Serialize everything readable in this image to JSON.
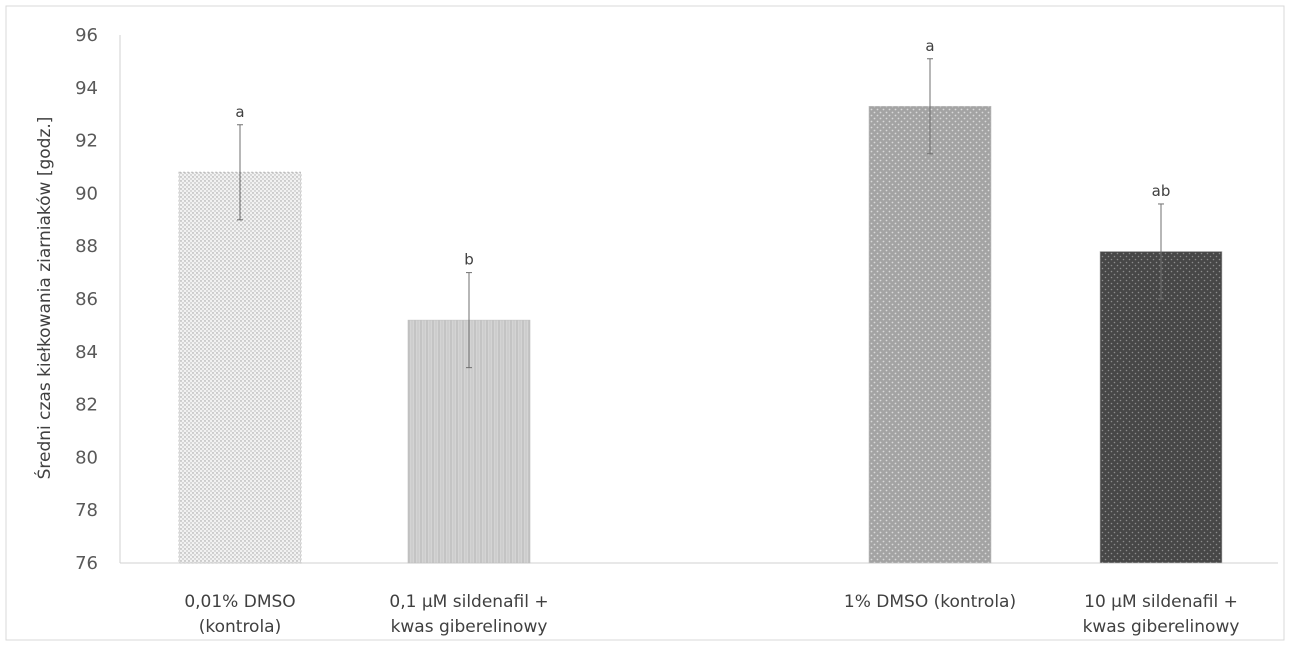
{
  "chart_data": {
    "type": "bar",
    "ylabel": "Średni czas kiełkowania ziarniaków [godz.]",
    "ylim": [
      76,
      96
    ],
    "yticks": [
      "76",
      "78",
      "80",
      "82",
      "84",
      "86",
      "88",
      "90",
      "92",
      "94",
      "96"
    ],
    "grid": false,
    "bars": [
      {
        "category": [
          "0,01% DMSO",
          "(kontrola)"
        ],
        "value": 90.8,
        "error": 1.8,
        "significance": "a",
        "pattern": "fine-dots",
        "color": "#ececec"
      },
      {
        "category": [
          "0,1 µM sildenafil +",
          "kwas giberelinowy"
        ],
        "value": 85.2,
        "error": 1.8,
        "significance": "b",
        "pattern": "vertical-lines",
        "color": "#cfcfcf"
      },
      {
        "category": [
          "1% DMSO (kontrola)"
        ],
        "value": 93.3,
        "error": 1.8,
        "significance": "a",
        "pattern": "dots",
        "color": "#a6a6a6"
      },
      {
        "category": [
          "10 µM sildenafil +",
          "kwas giberelinowy"
        ],
        "value": 87.8,
        "error": 1.8,
        "significance": "ab",
        "pattern": "dots",
        "color": "#4a4a4a"
      }
    ]
  }
}
